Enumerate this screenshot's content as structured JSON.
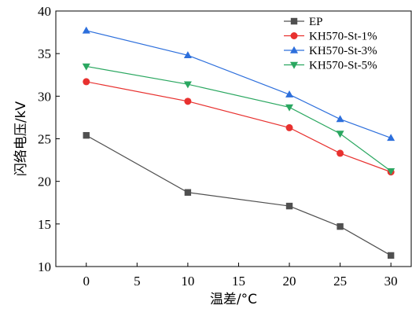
{
  "chart_data": {
    "type": "line",
    "title": "",
    "xlabel": "温差/°C",
    "ylabel": "闪络电压/kV",
    "xlim": [
      -3,
      32
    ],
    "ylim": [
      10,
      40
    ],
    "xticks": [
      0,
      5,
      10,
      15,
      20,
      25,
      30
    ],
    "yticks": [
      10,
      15,
      20,
      25,
      30,
      35,
      40
    ],
    "grid": false,
    "legend_position": "top-right",
    "x": [
      0,
      10,
      20,
      25,
      30
    ],
    "series": [
      {
        "name": "EP",
        "values": [
          25.4,
          18.7,
          17.1,
          14.7,
          11.3
        ],
        "color": "#505050",
        "marker": "square"
      },
      {
        "name": "KH570-St-1%",
        "values": [
          31.7,
          29.4,
          26.3,
          23.3,
          21.1
        ],
        "color": "#e8312f",
        "marker": "circle"
      },
      {
        "name": "KH570-St-3%",
        "values": [
          37.7,
          34.8,
          30.2,
          27.3,
          25.1
        ],
        "color": "#2d6fdc",
        "marker": "triangle-up"
      },
      {
        "name": "KH570-St-5%",
        "values": [
          33.5,
          31.4,
          28.7,
          25.6,
          21.2
        ],
        "color": "#2aa760",
        "marker": "triangle-down"
      }
    ]
  }
}
